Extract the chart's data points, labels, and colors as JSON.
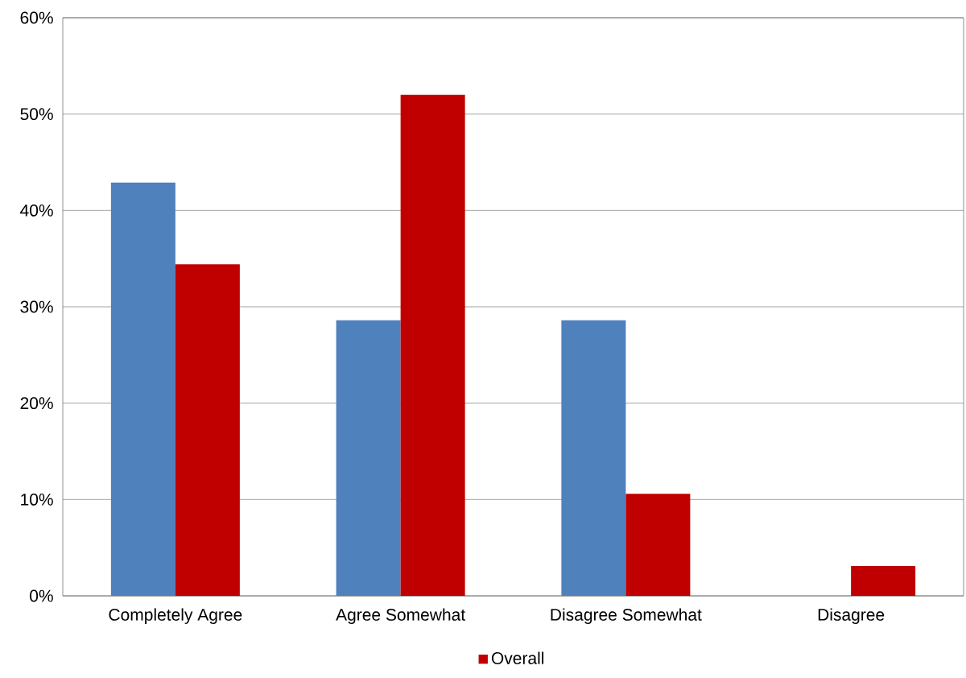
{
  "chart_data": {
    "type": "bar",
    "categories": [
      "Completely Agree",
      "Agree Somewhat",
      "Disagree Somewhat",
      "Disagree"
    ],
    "series": [
      {
        "color": "#4f81bd",
        "values": [
          42.9,
          28.6,
          28.6,
          0
        ]
      },
      {
        "name": "Overall",
        "color": "#c00000",
        "values": [
          34.4,
          52,
          10.6,
          3.1
        ]
      }
    ],
    "ylim": [
      0,
      60
    ],
    "yticks": [
      {
        "value": 0,
        "label": "0%"
      },
      {
        "value": 10,
        "label": "10%"
      },
      {
        "value": 20,
        "label": "20%"
      },
      {
        "value": 30,
        "label": "30%"
      },
      {
        "value": 40,
        "label": "40%"
      },
      {
        "value": 50,
        "label": "50%"
      },
      {
        "value": 60,
        "label": "60%"
      }
    ],
    "grid": "y",
    "legend": "bottom"
  }
}
